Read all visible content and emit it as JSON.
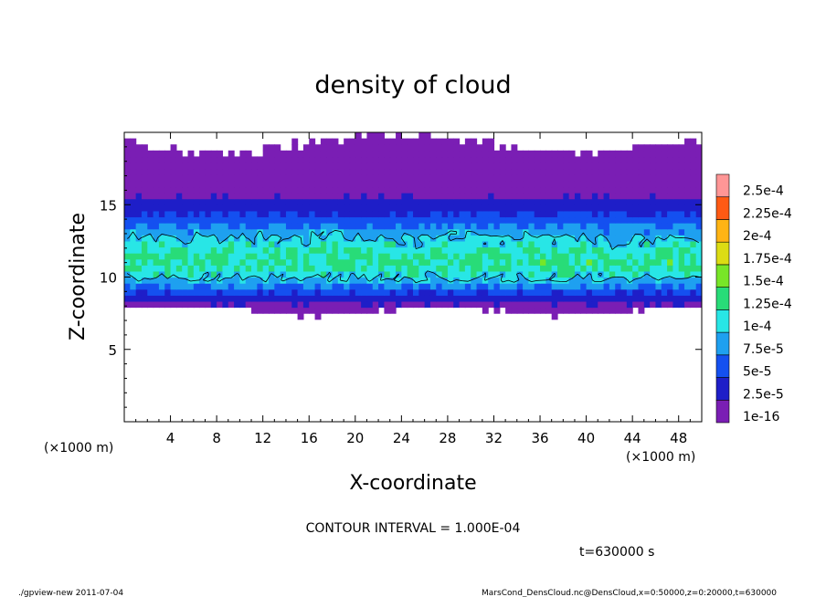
{
  "chart_data": {
    "type": "heatmap",
    "title": "density of cloud",
    "xlabel": "X-coordinate",
    "ylabel": "Z-coordinate",
    "x_unit_left": "(×1000 m)",
    "x_unit_right": "(×1000 m)",
    "xlim": [
      0,
      50
    ],
    "ylim": [
      0,
      20
    ],
    "xticks": [
      4,
      8,
      12,
      16,
      20,
      24,
      28,
      32,
      36,
      40,
      44,
      48
    ],
    "yticks": [
      5,
      10,
      15
    ],
    "colorbar": {
      "levels": [
        "1e-16",
        "2.5e-5",
        "5e-5",
        "7.5e-5",
        "1e-4",
        "1.25e-4",
        "1.5e-4",
        "1.75e-4",
        "2e-4",
        "2.25e-4",
        "2.5e-4"
      ],
      "colors": [
        "#7a1eb4",
        "#1e1ec8",
        "#1450f0",
        "#1ea0f0",
        "#28e6e6",
        "#28dc78",
        "#78e628",
        "#dcdc14",
        "#ffb414",
        "#ff5a14",
        "#ff9696"
      ]
    },
    "field": {
      "cloud_base": 7.5,
      "cloud_top": 19.5,
      "core_center": 11,
      "core_value": 0.00013,
      "contour_level": 0.0001
    },
    "contour_interval": "CONTOUR INTERVAL = 1.000E-04",
    "time": "t=630000 s"
  },
  "footer": {
    "left": "./gpview-new  2011-07-04",
    "right": "MarsCond_DensCloud.nc@DensCloud,x=0:50000,z=0:20000,t=630000"
  }
}
